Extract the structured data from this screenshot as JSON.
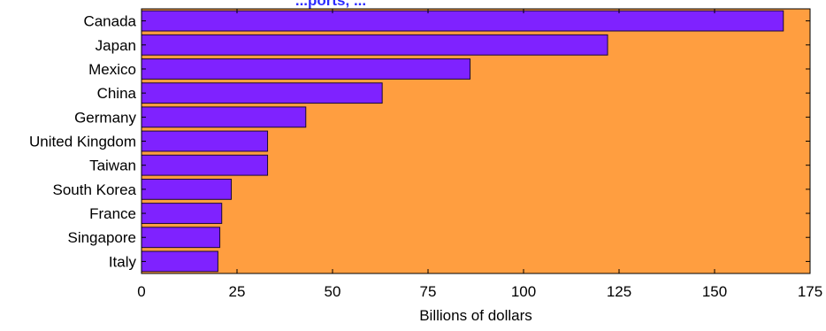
{
  "chart_data": {
    "type": "bar",
    "orientation": "horizontal",
    "title": "...ports, ...",
    "xlabel": "Billions of dollars",
    "ylabel": "",
    "categories": [
      "Canada",
      "Japan",
      "Mexico",
      "China",
      "Germany",
      "United Kingdom",
      "Taiwan",
      "South Korea",
      "France",
      "Singapore",
      "Italy"
    ],
    "values": [
      168,
      122,
      86,
      63,
      43,
      33,
      33,
      23.5,
      21,
      20.5,
      20
    ],
    "xlim": [
      0,
      175
    ],
    "xticks": [
      0,
      25,
      50,
      75,
      100,
      125,
      150,
      175
    ],
    "grid": false,
    "legend": "none",
    "colors": {
      "plot_background": "#FF9E40",
      "bar_fill": "#7F22FF",
      "bar_edge": "#1A0A33",
      "title": "#2B2BFF",
      "text": "#000000"
    }
  }
}
